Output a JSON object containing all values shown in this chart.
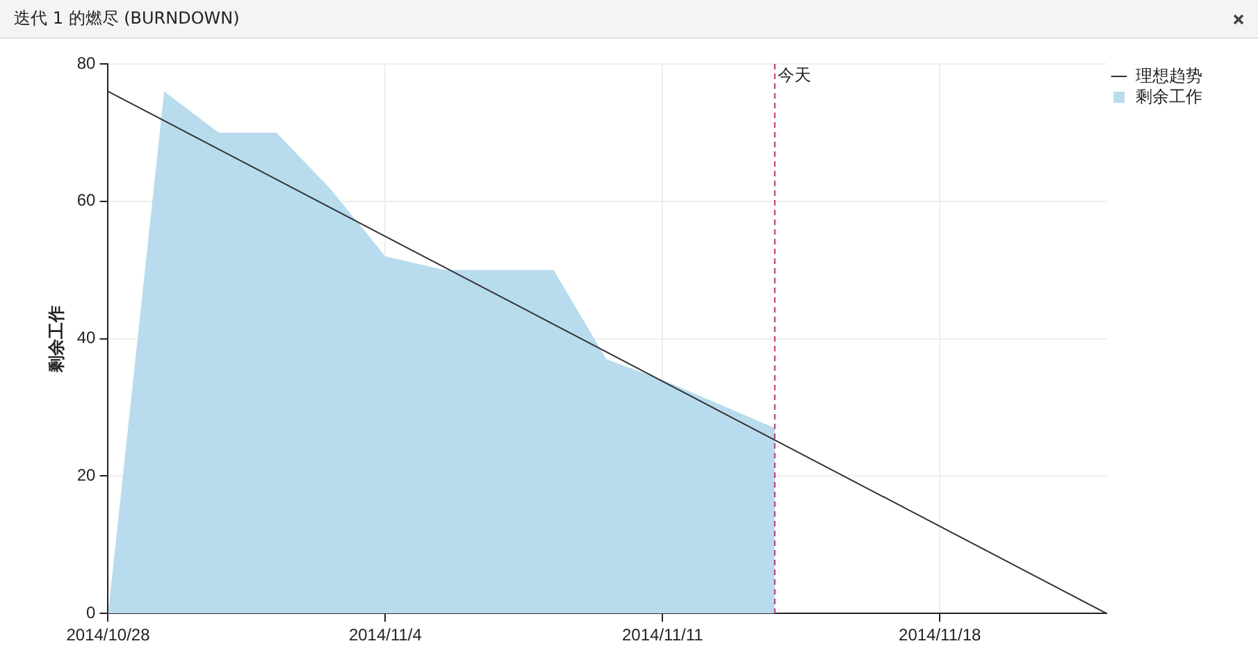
{
  "chart_data": {
    "type": "area",
    "title": "迭代 1 的燃尽 (BURNDOWN)",
    "ylabel": "剩余工作",
    "series": [
      {
        "name": "理想趋势",
        "type": "line",
        "color": "#333333",
        "x": [
          "2014-10-28",
          "2014-11-22T05:00"
        ],
        "values": [
          76,
          0
        ]
      },
      {
        "name": "剩余工作",
        "type": "area",
        "color": "#b8dced",
        "x": [
          "2014-10-28",
          "2014-10-29T10:00",
          "2014-10-30T19:00",
          "2014-11-01T06:00",
          "2014-11-02T14:00",
          "2014-11-04",
          "2014-11-05T12:00",
          "2014-11-08T06:00",
          "2014-11-09T14:00",
          "2014-11-11",
          "2014-11-13T20:00"
        ],
        "values": [
          0,
          76,
          70,
          70,
          62,
          52,
          50,
          50,
          37,
          34,
          27
        ]
      }
    ],
    "xlim": [
      "2014-10-28",
      "2014-11-22T05:00"
    ],
    "xticks": [
      {
        "value": "2014-10-28",
        "label": "2014/10/28"
      },
      {
        "value": "2014-11-04",
        "label": "2014/11/4"
      },
      {
        "value": "2014-11-11",
        "label": "2014/11/11"
      },
      {
        "value": "2014-11-18",
        "label": "2014/11/18"
      }
    ],
    "ylim": [
      0,
      80
    ],
    "yticks": [
      0,
      20,
      40,
      60,
      80
    ],
    "ref_lines": [
      {
        "axis": "x",
        "value": "2014-11-13T20:00",
        "label": "今天",
        "color": "#c0306a",
        "line_style": "dashed"
      }
    ],
    "grid": true,
    "legend": "top right"
  }
}
